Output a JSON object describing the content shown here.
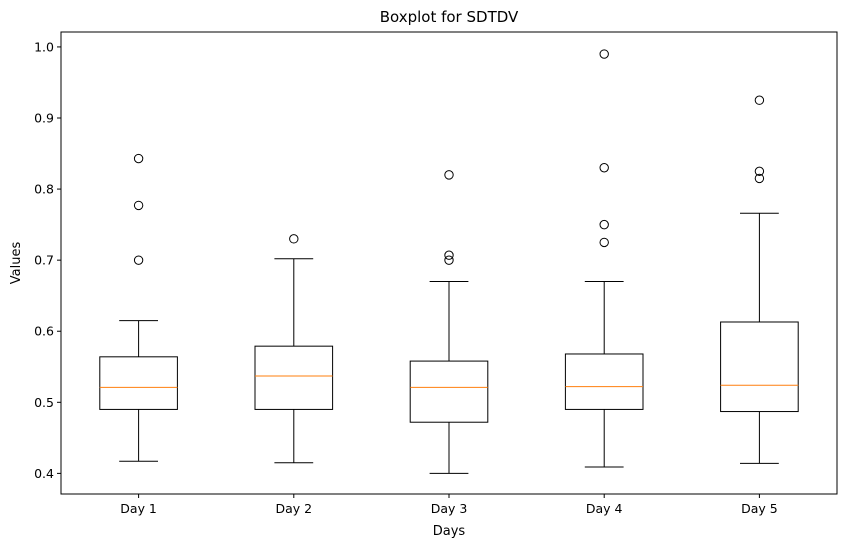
{
  "chart_data": {
    "type": "boxplot",
    "title": "Boxplot for SDTDV",
    "xlabel": "Days",
    "ylabel": "Values",
    "ylim": [
      0.371,
      1.021
    ],
    "yticks": [
      0.4,
      0.5,
      0.6,
      0.7,
      0.8,
      0.9,
      1.0
    ],
    "ytick_labels": [
      "0.4",
      "0.5",
      "0.6",
      "0.7",
      "0.8",
      "0.9",
      "1.0"
    ],
    "grid": false,
    "colors": {
      "box": "#000000",
      "median": "#ff7f0e",
      "background": "#ffffff"
    },
    "categories": [
      "Day 1",
      "Day 2",
      "Day 3",
      "Day 4",
      "Day 5"
    ],
    "boxes": [
      {
        "label": "Day 1",
        "whisker_low": 0.417,
        "q1": 0.49,
        "median": 0.521,
        "q3": 0.564,
        "whisker_high": 0.615,
        "outliers": [
          0.7,
          0.777,
          0.843
        ]
      },
      {
        "label": "Day 2",
        "whisker_low": 0.415,
        "q1": 0.49,
        "median": 0.537,
        "q3": 0.579,
        "whisker_high": 0.702,
        "outliers": [
          0.73
        ]
      },
      {
        "label": "Day 3",
        "whisker_low": 0.4,
        "q1": 0.472,
        "median": 0.521,
        "q3": 0.558,
        "whisker_high": 0.67,
        "outliers": [
          0.7,
          0.707,
          0.82
        ]
      },
      {
        "label": "Day 4",
        "whisker_low": 0.409,
        "q1": 0.49,
        "median": 0.522,
        "q3": 0.568,
        "whisker_high": 0.67,
        "outliers": [
          0.725,
          0.75,
          0.83,
          0.99
        ]
      },
      {
        "label": "Day 5",
        "whisker_low": 0.414,
        "q1": 0.487,
        "median": 0.524,
        "q3": 0.613,
        "whisker_high": 0.766,
        "outliers": [
          0.815,
          0.825,
          0.925
        ]
      }
    ]
  }
}
